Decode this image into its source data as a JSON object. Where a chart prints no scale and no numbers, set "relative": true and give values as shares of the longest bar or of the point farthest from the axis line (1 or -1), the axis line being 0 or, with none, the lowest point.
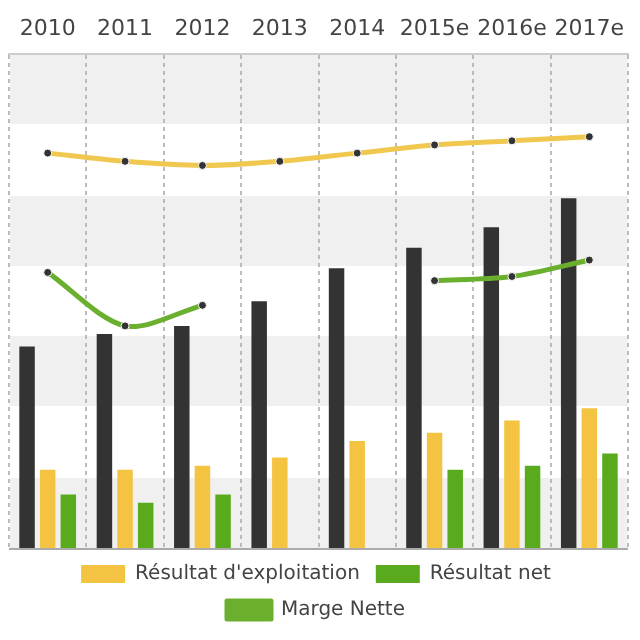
{
  "chart_data": {
    "type": "bar",
    "relative": true,
    "categories": [
      "2010",
      "2011",
      "2012",
      "2013",
      "2014",
      "2015e",
      "2016e",
      "2017e"
    ],
    "series": [
      {
        "color": "#333333",
        "values": [
          0.49,
          0.52,
          0.54,
          0.6,
          0.68,
          0.73,
          0.78,
          0.85
        ]
      },
      {
        "name": "Résultat d'exploitation",
        "color": "#f5c342",
        "values": [
          0.19,
          0.19,
          0.2,
          0.22,
          0.26,
          0.28,
          0.31,
          0.34
        ]
      },
      {
        "name": "Résultat net",
        "color": "#5aaa1e",
        "values": [
          0.13,
          0.11,
          0.13,
          null,
          null,
          0.19,
          0.2,
          0.23
        ]
      },
      {
        "name": "Marge Nette",
        "type": "line",
        "color": "#6ab02e",
        "values": [
          0.67,
          0.54,
          0.59,
          null,
          null,
          0.65,
          0.66,
          0.7
        ]
      },
      {
        "type": "line",
        "color": "#f0c850",
        "values": [
          0.96,
          0.94,
          0.93,
          0.94,
          0.96,
          0.98,
          0.99,
          1.0
        ]
      }
    ],
    "grid": true,
    "legend": "bottom",
    "marker": "circle"
  }
}
